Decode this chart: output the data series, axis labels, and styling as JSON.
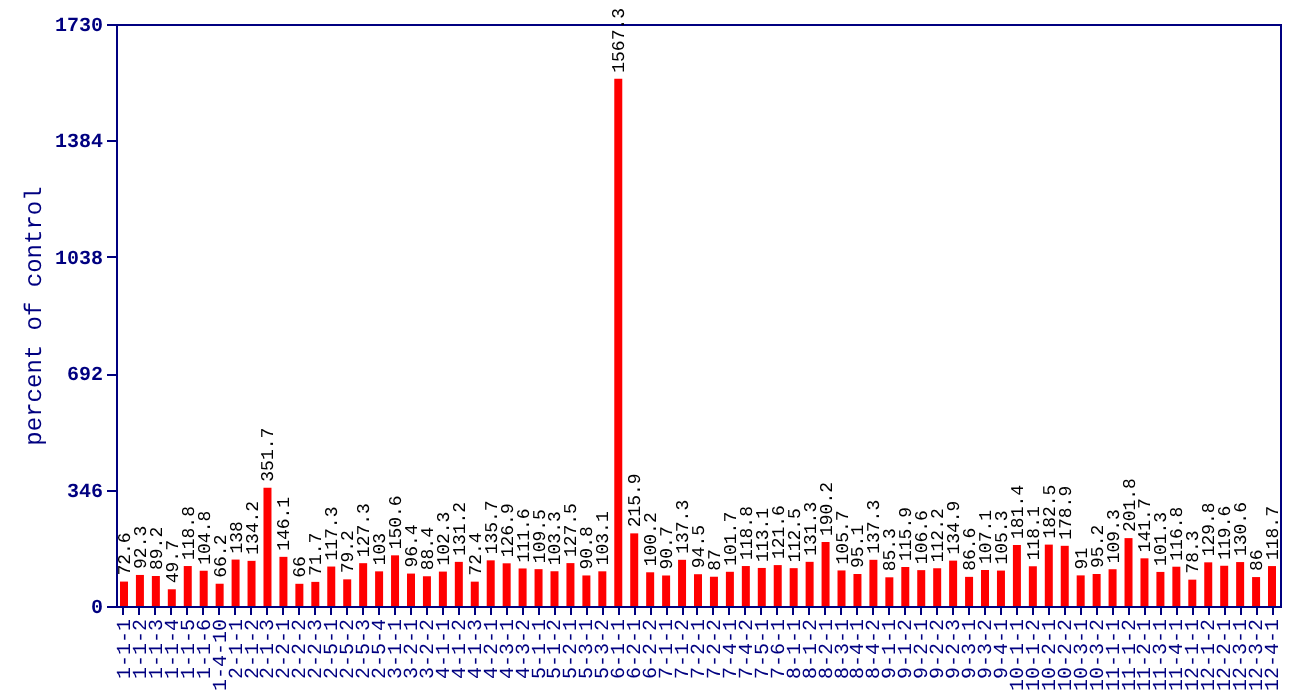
{
  "chart_data": {
    "type": "bar",
    "ylabel": "percent of control",
    "categories": [
      "1-1-1",
      "1-1-2",
      "1-1-3",
      "1-1-4",
      "1-1-5",
      "1-1-6",
      "1-4-10",
      "2-1-1",
      "2-1-2",
      "2-1-3",
      "2-2-1",
      "2-2-2",
      "2-2-3",
      "2-5-1",
      "2-5-2",
      "2-5-3",
      "2-5-4",
      "3-1-1",
      "3-2-1",
      "3-2-2",
      "4-1-1",
      "4-1-2",
      "4-1-3",
      "4-2-1",
      "4-3-1",
      "4-3-2",
      "5-1-1",
      "5-1-2",
      "5-2-1",
      "5-3-1",
      "5-3-2",
      "6-1-1",
      "6-2-1",
      "6-2-2",
      "7-1-1",
      "7-1-2",
      "7-2-1",
      "7-2-2",
      "7-4-1",
      "7-4-2",
      "7-5-1",
      "7-6-1",
      "8-1-1",
      "8-1-2",
      "8-2-1",
      "8-3-1",
      "8-4-1",
      "8-4-2",
      "9-1-1",
      "9-1-2",
      "9-2-1",
      "9-2-2",
      "9-2-3",
      "9-3-1",
      "9-3-2",
      "9-4-1",
      "10-1-1",
      "10-1-2",
      "10-2-1",
      "10-2-2",
      "10-3-1",
      "10-3-2",
      "11-1-1",
      "11-1-2",
      "11-2-1",
      "11-3-1",
      "11-4-1",
      "12-1-1",
      "12-1-2",
      "12-2-1",
      "12-3-1",
      "12-3-2",
      "12-4-1"
    ],
    "values": [
      72.6,
      92.3,
      89.2,
      49.7,
      118.8,
      104.8,
      66.2,
      138,
      134.2,
      351.7,
      146.1,
      66,
      71.7,
      117.3,
      79.2,
      127.3,
      103,
      150.6,
      96.4,
      88.4,
      102.3,
      131.2,
      72.4,
      135.7,
      126.9,
      111.6,
      109.5,
      103.3,
      127.5,
      90.8,
      103.1,
      1567.3,
      215.9,
      100.2,
      90.7,
      137.3,
      94.5,
      87,
      101.7,
      118.8,
      113.1,
      121.6,
      112.5,
      131.3,
      190.2,
      105.7,
      95.1,
      137.3,
      85.3,
      115.9,
      106.6,
      112.2,
      134.9,
      86.6,
      107.1,
      105.3,
      181.4,
      118.1,
      182.5,
      178.9,
      91,
      95.2,
      109.3,
      201.8,
      141.7,
      101.3,
      116.8,
      78.3,
      129.8,
      119.6,
      130.6,
      86,
      118.7
    ],
    "color": "#ff0000",
    "data_labels": true,
    "ylim": [
      0,
      1730
    ],
    "yticks": [
      0,
      346,
      692,
      1038,
      1384,
      1730
    ]
  }
}
